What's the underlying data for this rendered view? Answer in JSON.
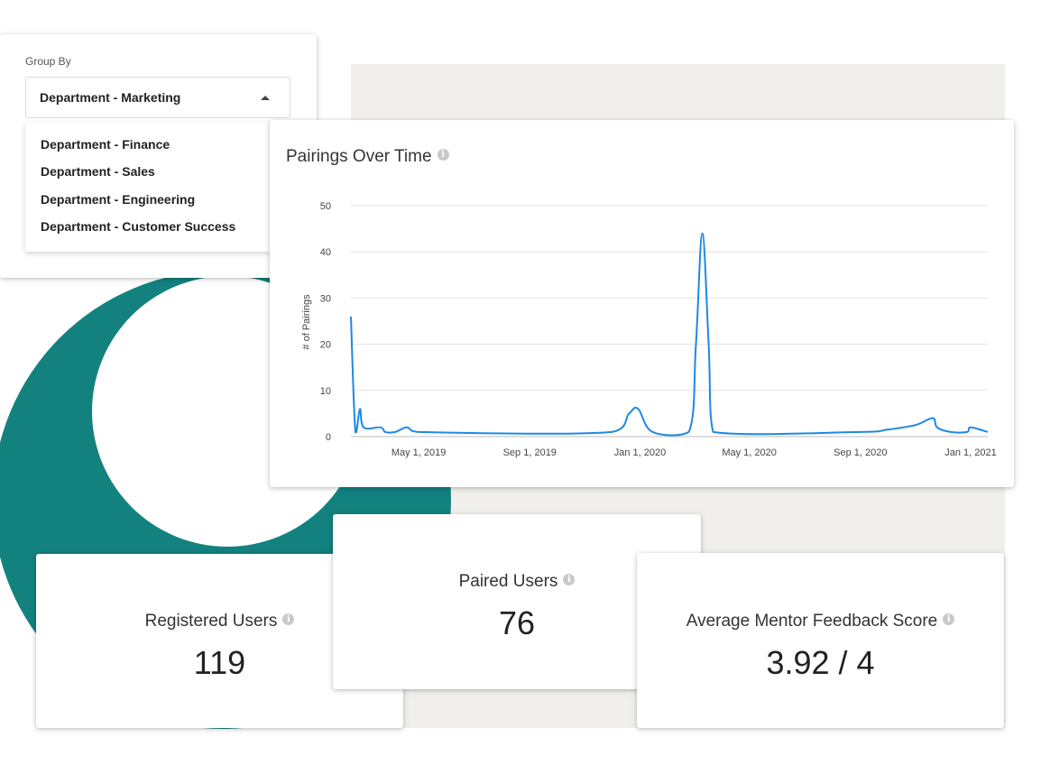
{
  "group_by": {
    "label": "Group By",
    "selected": "Department - Marketing",
    "options": [
      "Department - Finance",
      "Department - Sales",
      "Department - Engineering",
      "Department - Customer Success"
    ]
  },
  "chart": {
    "title": "Pairings Over Time",
    "info_icon": "info-icon"
  },
  "chart_data": {
    "type": "line",
    "title": "Pairings Over Time",
    "xlabel": "",
    "ylabel": "# of Pairings",
    "ylim": [
      0,
      50
    ],
    "yticks": [
      "0",
      "10",
      "20",
      "30",
      "40",
      "50"
    ],
    "xticks": [
      "May 1, 2019",
      "Sep 1, 2019",
      "Jan 1, 2020",
      "May 1, 2020",
      "Sep 1, 2020",
      "Jan 1, 2021"
    ],
    "xrange": [
      "2019-02-15",
      "2021-01-20"
    ],
    "grid": true,
    "color": "#1e88e5",
    "points": [
      [
        "2019-02-15",
        26
      ],
      [
        "2019-02-20",
        1
      ],
      [
        "2019-02-25",
        6
      ],
      [
        "2019-03-01",
        2
      ],
      [
        "2019-03-20",
        2
      ],
      [
        "2019-03-25",
        1
      ],
      [
        "2019-04-05",
        1
      ],
      [
        "2019-04-18",
        2
      ],
      [
        "2019-05-01",
        1
      ],
      [
        "2019-12-01",
        1
      ],
      [
        "2019-12-20",
        5
      ],
      [
        "2019-12-30",
        6
      ],
      [
        "2020-01-15",
        1
      ],
      [
        "2020-02-24",
        1
      ],
      [
        "2020-03-03",
        20
      ],
      [
        "2020-03-10",
        44
      ],
      [
        "2020-03-17",
        20
      ],
      [
        "2020-03-22",
        1
      ],
      [
        "2020-09-01",
        1
      ],
      [
        "2020-10-01",
        1.5
      ],
      [
        "2020-11-01",
        2.5
      ],
      [
        "2020-11-20",
        4
      ],
      [
        "2020-11-25",
        2
      ],
      [
        "2020-12-10",
        1
      ],
      [
        "2020-12-28",
        1
      ],
      [
        "2021-01-01",
        2
      ],
      [
        "2021-01-20",
        1
      ]
    ]
  },
  "stats": {
    "registered": {
      "title": "Registered Users",
      "value": "119"
    },
    "paired": {
      "title": "Paired Users",
      "value": "76"
    },
    "feedback": {
      "title": "Average Mentor Feedback Score",
      "value": "3.92 / 4"
    }
  },
  "colors": {
    "accent_teal": "#13827f",
    "line_blue": "#1e88e5",
    "panel_bg": "#f0efeb"
  }
}
